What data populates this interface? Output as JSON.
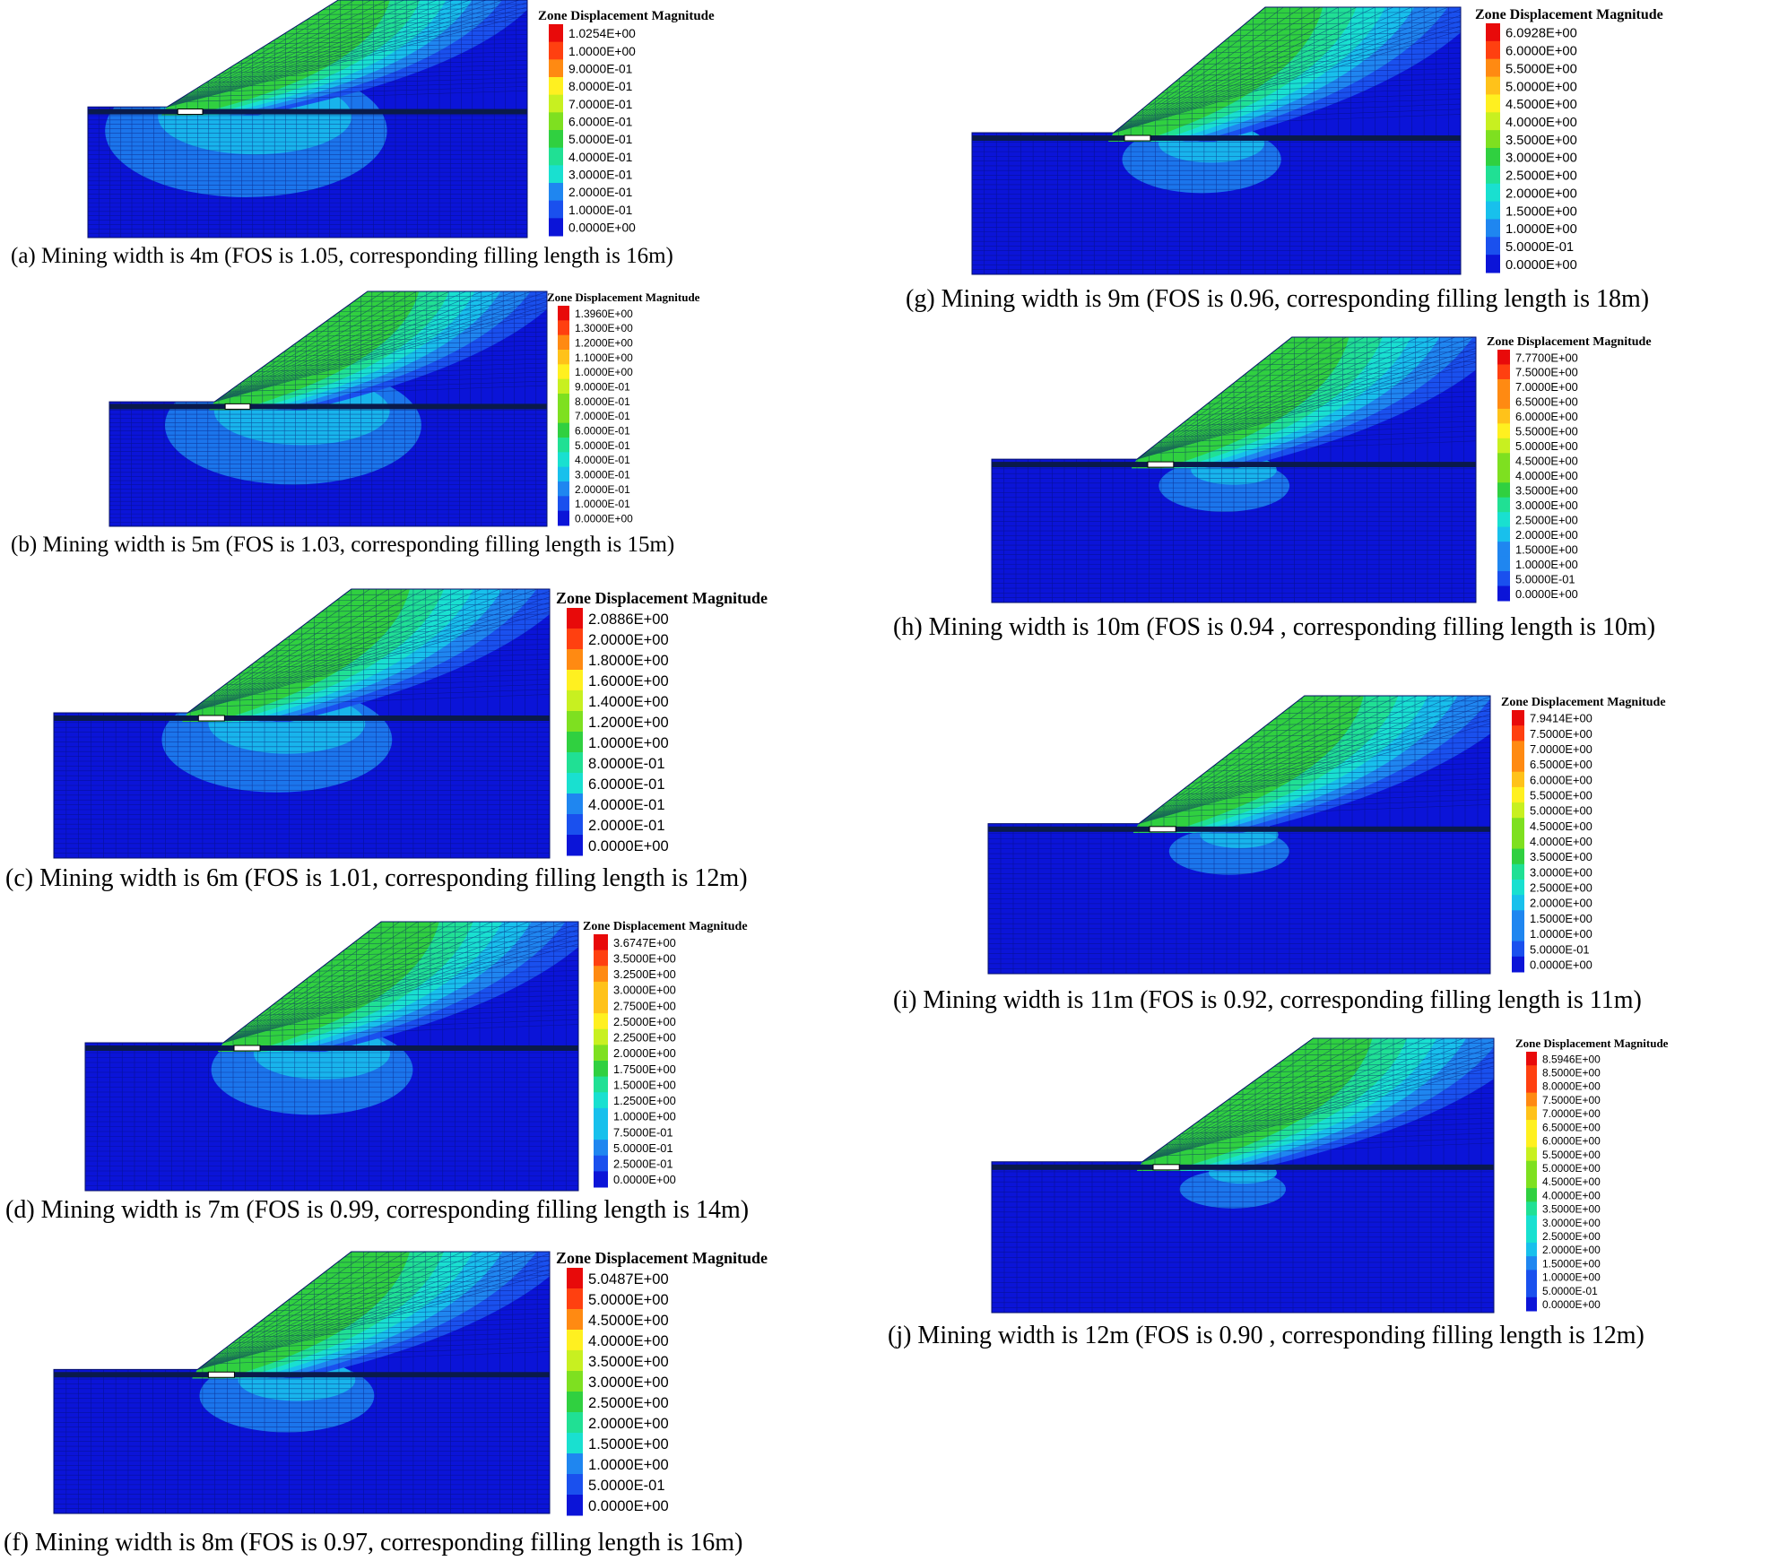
{
  "legend_title": "Zone Displacement Magnitude",
  "colors": {
    "stops": [
      "#0b14d8",
      "#1a50ee",
      "#1f86f0",
      "#18c0ec",
      "#19e0d0",
      "#20e094",
      "#30d040",
      "#7ee020",
      "#c8f020",
      "#fff020",
      "#ffc21a",
      "#ff8a12",
      "#ff4010",
      "#e80a0a"
    ]
  },
  "panels": [
    {
      "id": "a",
      "caption": "(a) Mining width is 4m (FOS is 1.05, corresponding filling length is 16m)",
      "legend": [
        "1.0254E+00",
        "1.0000E+00",
        "9.0000E-01",
        "8.0000E-01",
        "7.0000E-01",
        "6.0000E-01",
        "5.0000E-01",
        "4.0000E-01",
        "3.0000E-01",
        "2.0000E-01",
        "1.0000E-01",
        "0.0000E+00"
      ]
    },
    {
      "id": "b",
      "caption": "(b) Mining width is 5m (FOS is 1.03, corresponding filling length is 15m)",
      "legend": [
        "1.3960E+00",
        "1.3000E+00",
        "1.2000E+00",
        "1.1000E+00",
        "1.0000E+00",
        "9.0000E-01",
        "8.0000E-01",
        "7.0000E-01",
        "6.0000E-01",
        "5.0000E-01",
        "4.0000E-01",
        "3.0000E-01",
        "2.0000E-01",
        "1.0000E-01",
        "0.0000E+00"
      ]
    },
    {
      "id": "c",
      "caption": "(c) Mining width is 6m (FOS is 1.01, corresponding filling length is 12m)",
      "legend": [
        "2.0886E+00",
        "2.0000E+00",
        "1.8000E+00",
        "1.6000E+00",
        "1.4000E+00",
        "1.2000E+00",
        "1.0000E+00",
        "8.0000E-01",
        "6.0000E-01",
        "4.0000E-01",
        "2.0000E-01",
        "0.0000E+00"
      ]
    },
    {
      "id": "d",
      "caption": "(d) Mining width is 7m (FOS is 0.99, corresponding filling length is 14m)",
      "legend": [
        "3.6747E+00",
        "3.5000E+00",
        "3.2500E+00",
        "3.0000E+00",
        "2.7500E+00",
        "2.5000E+00",
        "2.2500E+00",
        "2.0000E+00",
        "1.7500E+00",
        "1.5000E+00",
        "1.2500E+00",
        "1.0000E+00",
        "7.5000E-01",
        "5.0000E-01",
        "2.5000E-01",
        "0.0000E+00"
      ]
    },
    {
      "id": "f",
      "caption": "(f) Mining width is 8m (FOS is 0.97, corresponding filling length is 16m)",
      "legend": [
        "5.0487E+00",
        "5.0000E+00",
        "4.5000E+00",
        "4.0000E+00",
        "3.5000E+00",
        "3.0000E+00",
        "2.5000E+00",
        "2.0000E+00",
        "1.5000E+00",
        "1.0000E+00",
        "5.0000E-01",
        "0.0000E+00"
      ]
    },
    {
      "id": "g",
      "caption": "(g) Mining width is 9m (FOS is 0.96, corresponding filling length is 18m)",
      "legend": [
        "6.0928E+00",
        "6.0000E+00",
        "5.5000E+00",
        "5.0000E+00",
        "4.5000E+00",
        "4.0000E+00",
        "3.5000E+00",
        "3.0000E+00",
        "2.5000E+00",
        "2.0000E+00",
        "1.5000E+00",
        "1.0000E+00",
        "5.0000E-01",
        "0.0000E+00"
      ]
    },
    {
      "id": "h",
      "caption": "(h) Mining width is 10m (FOS is 0.94 , corresponding filling length is 10m)",
      "legend": [
        "7.7700E+00",
        "7.5000E+00",
        "7.0000E+00",
        "6.5000E+00",
        "6.0000E+00",
        "5.5000E+00",
        "5.0000E+00",
        "4.5000E+00",
        "4.0000E+00",
        "3.5000E+00",
        "3.0000E+00",
        "2.5000E+00",
        "2.0000E+00",
        "1.5000E+00",
        "1.0000E+00",
        "5.0000E-01",
        "0.0000E+00"
      ]
    },
    {
      "id": "i",
      "caption": "(i) Mining width is 11m (FOS is 0.92, corresponding filling length is 11m)",
      "legend": [
        "7.9414E+00",
        "7.5000E+00",
        "7.0000E+00",
        "6.5000E+00",
        "6.0000E+00",
        "5.5000E+00",
        "5.0000E+00",
        "4.5000E+00",
        "4.0000E+00",
        "3.5000E+00",
        "3.0000E+00",
        "2.5000E+00",
        "2.0000E+00",
        "1.5000E+00",
        "1.0000E+00",
        "5.0000E-01",
        "0.0000E+00"
      ]
    },
    {
      "id": "j",
      "caption": "(j) Mining width is 12m (FOS is 0.90 , corresponding filling length is 12m)",
      "legend": [
        "8.5946E+00",
        "8.5000E+00",
        "8.0000E+00",
        "7.5000E+00",
        "7.0000E+00",
        "6.5000E+00",
        "6.0000E+00",
        "5.5000E+00",
        "5.0000E+00",
        "4.5000E+00",
        "4.0000E+00",
        "3.5000E+00",
        "3.0000E+00",
        "2.5000E+00",
        "2.0000E+00",
        "1.5000E+00",
        "1.0000E+00",
        "5.0000E-01",
        "0.0000E+00"
      ]
    }
  ]
}
